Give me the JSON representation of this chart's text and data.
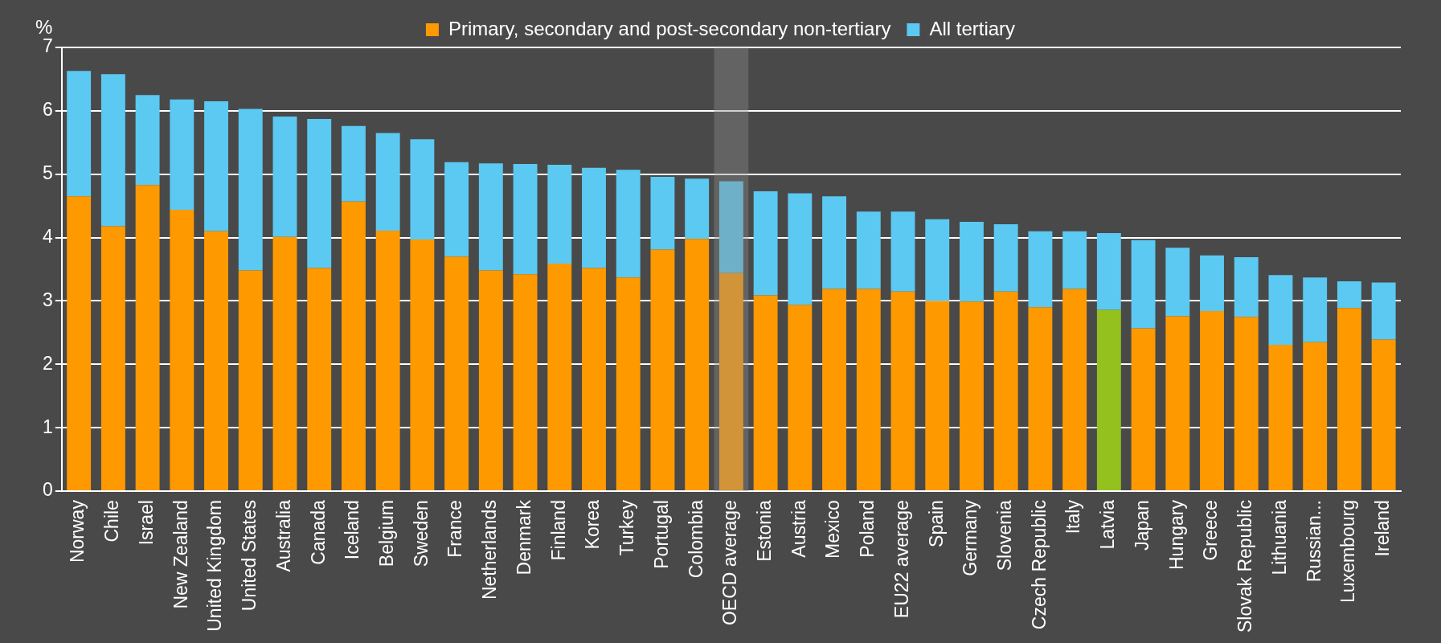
{
  "chart_data": {
    "type": "bar",
    "stacked": true,
    "ylabel": "%",
    "legend": "top",
    "grid": "y",
    "categories": [
      "Norway",
      "Chile",
      "Israel",
      "New Zealand",
      "United Kingdom",
      "United States",
      "Australia",
      "Canada",
      "Iceland",
      "Belgium",
      "Sweden",
      "France",
      "Netherlands",
      "Denmark",
      "Finland",
      "Korea",
      "Turkey",
      "Portugal",
      "Colombia",
      "OECD average",
      "Estonia",
      "Austria",
      "Mexico",
      "Poland",
      "EU22 average",
      "Spain",
      "Germany",
      "Slovenia",
      "Czech Republic",
      "Italy",
      "Latvia",
      "Japan",
      "Hungary",
      "Greece",
      "Slovak Republic",
      "Lithuania",
      "Russian...",
      "Luxembourg",
      "Ireland"
    ],
    "series": [
      {
        "name": "Primary, secondary and post-secondary non-tertiary",
        "color": "#ff9900",
        "colors": [
          "#ff9900",
          "#ff9900",
          "#ff9900",
          "#ff9900",
          "#ff9900",
          "#ff9900",
          "#ff9900",
          "#ff9900",
          "#ff9900",
          "#ff9900",
          "#ff9900",
          "#ff9900",
          "#ff9900",
          "#ff9900",
          "#ff9900",
          "#ff9900",
          "#ff9900",
          "#ff9900",
          "#ff9900",
          "#ff9900",
          "#ff9900",
          "#ff9900",
          "#ff9900",
          "#ff9900",
          "#ff9900",
          "#ff9900",
          "#ff9900",
          "#ff9900",
          "#ff9900",
          "#ff9900",
          "#95c11f",
          "#ff9900",
          "#ff9900",
          "#ff9900",
          "#ff9900",
          "#ff9900",
          "#ff9900",
          "#ff9900",
          "#ff9900"
        ],
        "values": [
          4.65,
          4.18,
          4.83,
          4.44,
          4.1,
          3.48,
          4.01,
          3.52,
          4.57,
          4.11,
          3.97,
          3.7,
          3.48,
          3.42,
          3.59,
          3.52,
          3.37,
          3.81,
          3.98,
          3.44,
          3.09,
          2.94,
          3.19,
          3.19,
          3.15,
          3.0,
          2.99,
          3.15,
          2.9,
          3.19,
          2.86,
          2.57,
          2.76,
          2.84,
          2.75,
          2.31,
          2.35,
          2.89,
          2.39
        ]
      },
      {
        "name": "All tertiary",
        "color": "#5bc9f1",
        "values": [
          1.98,
          2.4,
          1.42,
          1.74,
          2.05,
          2.55,
          1.9,
          2.35,
          1.19,
          1.54,
          1.58,
          1.49,
          1.69,
          1.74,
          1.56,
          1.58,
          1.7,
          1.15,
          0.95,
          1.45,
          1.64,
          1.76,
          1.46,
          1.22,
          1.26,
          1.29,
          1.26,
          1.06,
          1.2,
          0.91,
          1.21,
          1.39,
          1.08,
          0.88,
          0.94,
          1.1,
          1.02,
          0.42,
          0.9
        ]
      }
    ],
    "ylim": [
      0,
      7
    ],
    "yticks": [
      0,
      1,
      2,
      3,
      4,
      5,
      6,
      7
    ],
    "bands": [
      {
        "axis": "x",
        "from": "OECD average",
        "to": "OECD average",
        "color": "#8c8c8c"
      }
    ]
  }
}
